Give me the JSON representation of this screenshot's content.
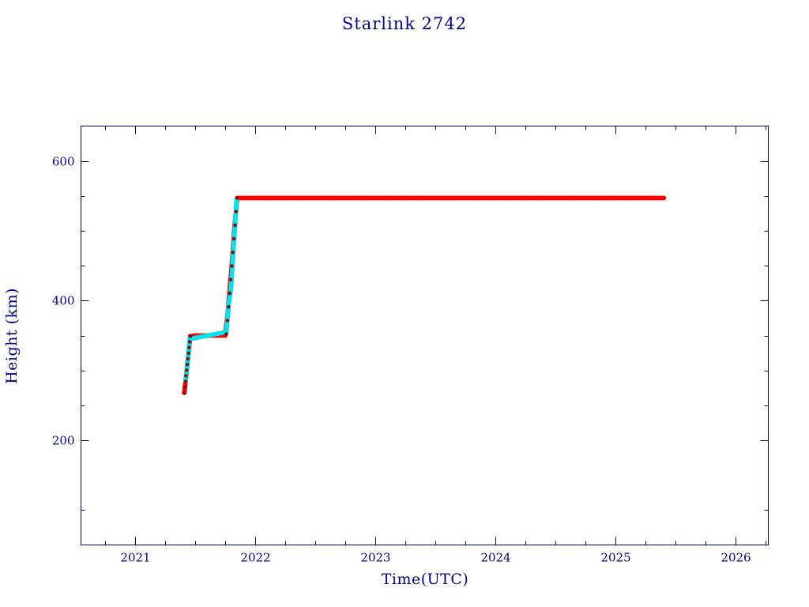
{
  "chart_data": {
    "type": "scatter",
    "title": "Starlink 2742",
    "xlabel": "Time(UTC)",
    "ylabel": "Height (km)",
    "xlim": [
      2020.55,
      2026.27
    ],
    "ylim": [
      50,
      650
    ],
    "x_ticks_major": [
      2021,
      2022,
      2023,
      2024,
      2025,
      2026
    ],
    "x_ticks_minor": [
      2020.75,
      2021.25,
      2021.5,
      2021.75,
      2022.25,
      2022.5,
      2022.75,
      2023.25,
      2023.5,
      2023.75,
      2024.25,
      2024.5,
      2024.75,
      2025.25,
      2025.5,
      2025.75,
      2026.25
    ],
    "y_ticks_major": [
      200,
      400,
      600
    ],
    "y_ticks_minor": [
      100,
      250,
      300,
      350,
      450,
      500,
      550
    ],
    "grid": false,
    "colors": {
      "frame": "#00008b",
      "series_main": "#ff0000",
      "series_maneuver": "#00e5ee",
      "marker_dark": "#8b0000"
    },
    "series": [
      {
        "color": "#ff0000",
        "x": [
          2021.41,
          2021.43,
          2021.46,
          2021.5,
          2021.55,
          2021.6,
          2021.65,
          2021.7,
          2021.75,
          2021.77,
          2021.8,
          2021.83,
          2021.85,
          2021.9,
          2022.0,
          2022.25,
          2022.5,
          2022.75,
          2023.0,
          2023.25,
          2023.5,
          2023.75,
          2024.0,
          2024.25,
          2024.5,
          2024.75,
          2025.0,
          2025.25,
          2025.4
        ],
        "values": [
          268,
          300,
          349,
          350,
          350,
          350,
          350,
          350,
          350,
          380,
          440,
          510,
          547,
          547,
          547,
          547,
          547,
          547,
          547,
          547,
          547,
          547,
          547,
          547,
          547,
          547,
          547,
          547,
          547
        ]
      },
      {
        "color": "#00e5ee",
        "x": [
          2021.42,
          2021.435,
          2021.445,
          2021.455,
          2021.76,
          2021.78,
          2021.8,
          2021.815,
          2021.83,
          2021.845
        ],
        "values": [
          285,
          305,
          325,
          345,
          355,
          395,
          420,
          465,
          500,
          545
        ]
      }
    ]
  }
}
